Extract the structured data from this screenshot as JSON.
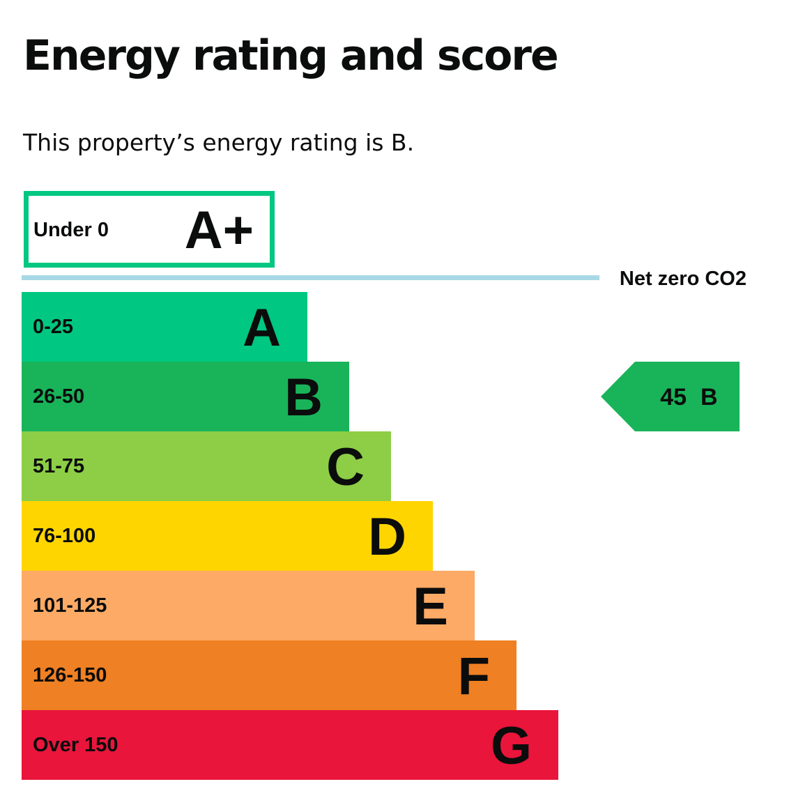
{
  "page": {
    "title": "Energy rating and score",
    "lead": "This property’s energy rating is B."
  },
  "chart_data": {
    "type": "bar",
    "title": "",
    "xlabel": "",
    "ylabel": "",
    "bands": [
      {
        "letter": "A+",
        "range": "Under 0",
        "color": "#00c781",
        "style": "outline"
      },
      {
        "letter": "A",
        "range": "0-25",
        "color": "#00c781"
      },
      {
        "letter": "B",
        "range": "26-50",
        "color": "#19b459"
      },
      {
        "letter": "C",
        "range": "51-75",
        "color": "#8dce46"
      },
      {
        "letter": "D",
        "range": "76-100",
        "color": "#ffd500"
      },
      {
        "letter": "E",
        "range": "101-125",
        "color": "#fcaa65"
      },
      {
        "letter": "F",
        "range": "126-150",
        "color": "#ef8023"
      },
      {
        "letter": "G",
        "range": "Over 150",
        "color": "#e9153b"
      }
    ],
    "threshold": {
      "label": "Net zero CO2",
      "color": "#a8d8e6"
    },
    "current": {
      "score": 45,
      "rating": "B",
      "color": "#19b459"
    }
  }
}
